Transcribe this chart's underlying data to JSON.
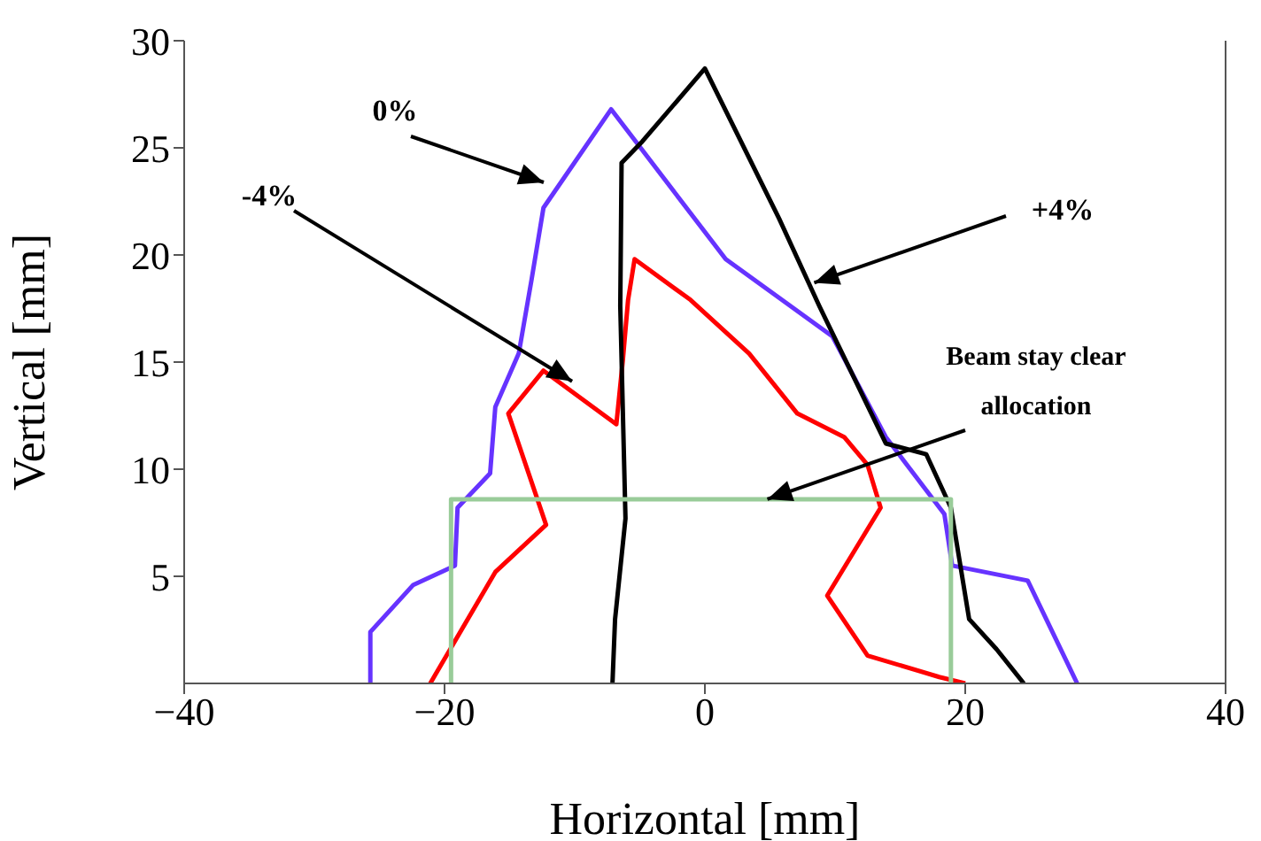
{
  "chart_data": {
    "type": "line",
    "xlabel": "Horizontal [mm]",
    "ylabel": "Vertical [mm]",
    "xlim": [
      -40,
      40
    ],
    "ylim": [
      0,
      30
    ],
    "xticks": [
      {
        "value": -40,
        "label": "−40"
      },
      {
        "value": -20,
        "label": "−20"
      },
      0,
      20,
      40
    ],
    "yticks": [
      5,
      10,
      15,
      20,
      25,
      30
    ],
    "grid": false,
    "legend": false,
    "marker": "none",
    "line_style": "solid",
    "series": [
      {
        "color": "#6633ff",
        "x": [
          -25.7,
          -25.7,
          -22.4,
          -19.2,
          -19.0,
          -16.5,
          -16.1,
          -14.3,
          -13.3,
          -12.4,
          -7.2,
          1.6,
          9.8,
          13.9,
          18.4,
          19.0,
          24.8,
          28.6
        ],
        "values": [
          0,
          2.4,
          4.6,
          5.5,
          8.2,
          9.8,
          12.9,
          15.4,
          18.9,
          22.2,
          26.8,
          19.8,
          16.2,
          11.5,
          7.9,
          5.5,
          4.8,
          0
        ]
      },
      {
        "color": "#ff0000",
        "x": [
          -21.1,
          -16.1,
          -12.2,
          -15.1,
          -12.4,
          -6.8,
          -6.3,
          -5.9,
          -5.4,
          -1.1,
          3.4,
          7.1,
          10.7,
          12.5,
          13.5,
          9.4,
          12.5,
          18.0,
          20.0
        ],
        "values": [
          0,
          5.2,
          7.4,
          12.6,
          14.6,
          12.1,
          15.1,
          17.9,
          19.8,
          17.9,
          15.4,
          12.6,
          11.5,
          10.2,
          8.2,
          4.1,
          1.3,
          0.3,
          0
        ]
      },
      {
        "color": "#000000",
        "x": [
          -7.1,
          -6.9,
          -6.1,
          -6.5,
          -6.4,
          -4.8,
          0,
          5.7,
          8.8,
          13.9,
          17.0,
          18.9,
          20.3,
          22.4,
          24.5
        ],
        "values": [
          0,
          3.0,
          7.7,
          17.6,
          24.3,
          25.3,
          28.7,
          21.7,
          17.6,
          11.2,
          10.7,
          8.2,
          3.0,
          1.6,
          0
        ]
      },
      {
        "color": "#99cc99",
        "x": [
          -19.5,
          -19.5,
          18.9,
          18.9
        ],
        "values": [
          0,
          8.6,
          8.6,
          0
        ]
      }
    ],
    "annotations": [
      "0%",
      {
        "text": "-4%",
        "x": -10.2,
        "y": 14.1
      },
      {
        "text": "+4%",
        "x": 8.4,
        "y": 18.7
      },
      {
        "text": "Beam stay clear allocation",
        "x": 4.8,
        "y": 8.6
      }
    ]
  }
}
